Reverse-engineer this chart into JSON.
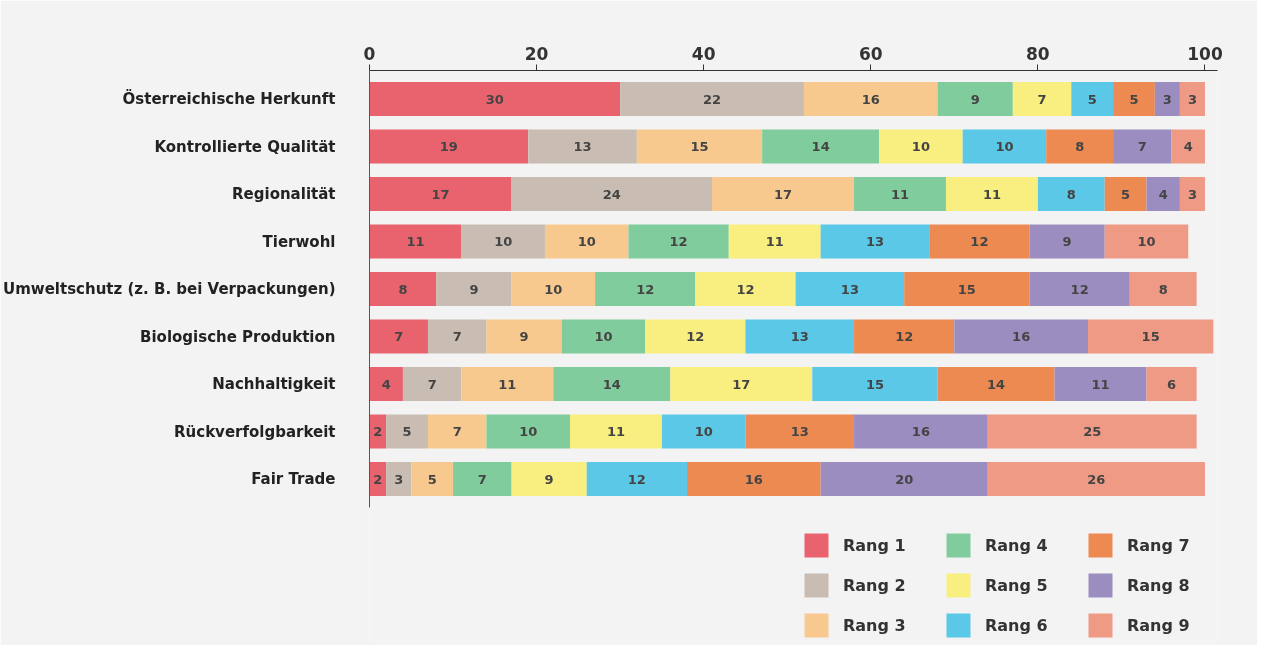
{
  "chart_data": {
    "type": "bar",
    "orientation": "horizontal",
    "stacked": true,
    "data_labels": true,
    "grid": false,
    "legend": "bottom right",
    "categories": [
      "Österreichische Herkunft",
      "Kontrollierte Qualität",
      "Regionalität",
      "Tierwohl",
      "Umweltschutz (z. B. bei Verpackungen)",
      "Biologische Produktion",
      "Nachhaltigkeit",
      "Rückverfolgbarkeit",
      "Fair Trade"
    ],
    "xlim": [
      0,
      101.5
    ],
    "xticks": [
      0,
      20,
      40,
      60,
      80,
      100
    ],
    "series": [
      {
        "name": "Rang 1",
        "color": "#e8636e",
        "values": [
          30,
          19,
          17,
          11,
          8,
          7,
          4,
          2,
          2
        ]
      },
      {
        "name": "Rang 2",
        "color": "#c9bdb3",
        "values": [
          22,
          13,
          24,
          10,
          9,
          7,
          7,
          5,
          3
        ]
      },
      {
        "name": "Rang 3",
        "color": "#f7c98f",
        "values": [
          16,
          15,
          17,
          10,
          10,
          9,
          11,
          7,
          5
        ]
      },
      {
        "name": "Rang 4",
        "color": "#80cc9c",
        "values": [
          9,
          14,
          11,
          12,
          12,
          10,
          14,
          10,
          7
        ]
      },
      {
        "name": "Rang 5",
        "color": "#f8ef80",
        "values": [
          7,
          10,
          11,
          11,
          12,
          12,
          17,
          11,
          9
        ]
      },
      {
        "name": "Rang 6",
        "color": "#5bc8e8",
        "values": [
          5,
          10,
          8,
          13,
          13,
          13,
          15,
          10,
          12
        ]
      },
      {
        "name": "Rang 7",
        "color": "#ec8a52",
        "values": [
          5,
          8,
          5,
          12,
          15,
          12,
          14,
          13,
          16
        ]
      },
      {
        "name": "Rang 8",
        "color": "#9b8dc0",
        "values": [
          3,
          7,
          4,
          9,
          12,
          16,
          11,
          16,
          20
        ]
      },
      {
        "name": "Rang 9",
        "color": "#ef9a85",
        "values": [
          3,
          4,
          3,
          10,
          8,
          15,
          6,
          25,
          26
        ]
      }
    ]
  }
}
